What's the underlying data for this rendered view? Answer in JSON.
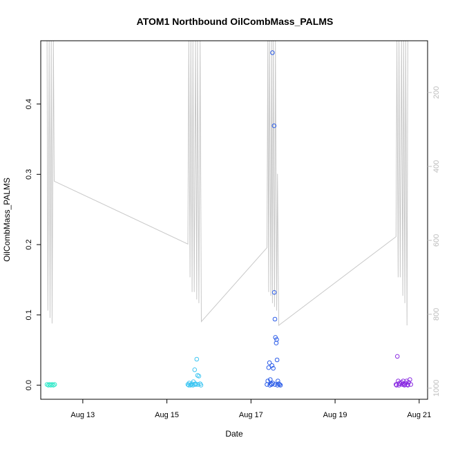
{
  "chart_data": {
    "type": "scatter",
    "title": "ATOM1 Northbound OilCombMass_PALMS",
    "xlabel": "Date",
    "ylabel": "OilCombMass_PALMS",
    "x_unit": "day of August",
    "xlim": [
      12.0,
      21.2
    ],
    "ylim": [
      -0.02,
      0.49
    ],
    "x_ticks": [
      13,
      15,
      17,
      19,
      21
    ],
    "x_tick_labels": [
      "Aug 13",
      "Aug 15",
      "Aug 17",
      "Aug 19",
      "Aug 21"
    ],
    "y_ticks": [
      0.0,
      0.1,
      0.2,
      0.3,
      0.4
    ],
    "y_tick_labels": [
      "0.0",
      "0.1",
      "0.2",
      "0.3",
      "0.4"
    ],
    "right_axis": {
      "reversed": true,
      "range": [
        60,
        1030
      ],
      "ticks": [
        200,
        400,
        600,
        800,
        1000
      ],
      "tick_labels": [
        "200",
        "400",
        "600",
        "800",
        "1000"
      ],
      "color": "#bdbdbd"
    },
    "grid": false,
    "legend": "none",
    "marker": "open-circle",
    "series": [
      {
        "color": "#2ee8c8",
        "points": [
          [
            12.15,
            0.001
          ],
          [
            12.18,
            0.0
          ],
          [
            12.21,
            0.001
          ],
          [
            12.24,
            0.0
          ],
          [
            12.27,
            0.001
          ],
          [
            12.3,
            0.0
          ],
          [
            12.33,
            0.001
          ]
        ]
      },
      {
        "color": "#3ec6f2",
        "points": [
          [
            15.5,
            0.001
          ],
          [
            15.53,
            0.003
          ],
          [
            15.56,
            0.0
          ],
          [
            15.6,
            0.002
          ],
          [
            15.63,
            0.005
          ],
          [
            15.66,
            0.022
          ],
          [
            15.69,
            0.001
          ],
          [
            15.71,
            0.037
          ],
          [
            15.73,
            0.014
          ],
          [
            15.76,
            0.013
          ],
          [
            15.58,
            0.001
          ],
          [
            15.62,
            0.0
          ],
          [
            15.68,
            0.002
          ],
          [
            15.74,
            0.001
          ],
          [
            15.79,
            0.002
          ],
          [
            15.81,
            0.0
          ],
          [
            15.52,
            0.0
          ],
          [
            15.65,
            0.001
          ]
        ]
      },
      {
        "color": "#2b5ce8",
        "points": [
          [
            17.38,
            0.001
          ],
          [
            17.4,
            0.006
          ],
          [
            17.42,
            0.025
          ],
          [
            17.44,
            0.032
          ],
          [
            17.46,
            0.008
          ],
          [
            17.48,
            0.002
          ],
          [
            17.5,
            0.028
          ],
          [
            17.51,
            0.473
          ],
          [
            17.52,
            0.003
          ],
          [
            17.53,
            0.024
          ],
          [
            17.55,
            0.369
          ],
          [
            17.555,
            0.132
          ],
          [
            17.57,
            0.094
          ],
          [
            17.58,
            0.068
          ],
          [
            17.6,
            0.06
          ],
          [
            17.61,
            0.065
          ],
          [
            17.62,
            0.036
          ],
          [
            17.64,
            0.006
          ],
          [
            17.66,
            0.002
          ],
          [
            17.68,
            0.001
          ],
          [
            17.7,
            0.0
          ],
          [
            17.45,
            0.0
          ],
          [
            17.49,
            0.001
          ],
          [
            17.57,
            0.001
          ],
          [
            17.63,
            0.0
          ]
        ]
      },
      {
        "color": "#8a2be2",
        "points": [
          [
            20.45,
            0.001
          ],
          [
            20.48,
            0.041
          ],
          [
            20.5,
            0.006
          ],
          [
            20.52,
            0.0
          ],
          [
            20.55,
            0.002
          ],
          [
            20.58,
            0.004
          ],
          [
            20.6,
            0.001
          ],
          [
            20.62,
            0.006
          ],
          [
            20.65,
            0.0
          ],
          [
            20.68,
            0.003
          ],
          [
            20.7,
            0.006
          ],
          [
            20.72,
            0.001
          ],
          [
            20.75,
            0.004
          ],
          [
            20.78,
            0.008
          ],
          [
            20.8,
            0.001
          ],
          [
            20.53,
            0.003
          ],
          [
            20.63,
            0.002
          ],
          [
            20.73,
            0.0
          ],
          [
            20.46,
            0.0
          ],
          [
            20.66,
            0.001
          ]
        ]
      }
    ],
    "line_series": {
      "axis": "right",
      "color": "#c8c8c8",
      "points": [
        [
          12.15,
          60
        ],
        [
          12.17,
          790
        ],
        [
          12.2,
          60
        ],
        [
          12.22,
          810
        ],
        [
          12.25,
          60
        ],
        [
          12.27,
          825
        ],
        [
          12.3,
          60
        ],
        [
          12.32,
          440
        ],
        [
          15.5,
          610
        ],
        [
          15.52,
          60
        ],
        [
          15.55,
          700
        ],
        [
          15.57,
          60
        ],
        [
          15.6,
          740
        ],
        [
          15.62,
          60
        ],
        [
          15.65,
          740
        ],
        [
          15.68,
          60
        ],
        [
          15.71,
          760
        ],
        [
          15.73,
          60
        ],
        [
          15.76,
          770
        ],
        [
          15.79,
          60
        ],
        [
          15.82,
          820
        ],
        [
          17.38,
          620
        ],
        [
          17.4,
          60
        ],
        [
          17.42,
          740
        ],
        [
          17.44,
          60
        ],
        [
          17.47,
          750
        ],
        [
          17.49,
          60
        ],
        [
          17.51,
          770
        ],
        [
          17.53,
          60
        ],
        [
          17.56,
          780
        ],
        [
          17.58,
          60
        ],
        [
          17.61,
          790
        ],
        [
          17.63,
          420
        ],
        [
          17.66,
          830
        ],
        [
          20.45,
          590
        ],
        [
          20.47,
          60
        ],
        [
          20.5,
          700
        ],
        [
          20.52,
          60
        ],
        [
          20.55,
          700
        ],
        [
          20.58,
          60
        ],
        [
          20.61,
          750
        ],
        [
          20.63,
          60
        ],
        [
          20.66,
          770
        ],
        [
          20.68,
          60
        ],
        [
          20.71,
          830
        ],
        [
          20.73,
          60
        ]
      ]
    }
  }
}
